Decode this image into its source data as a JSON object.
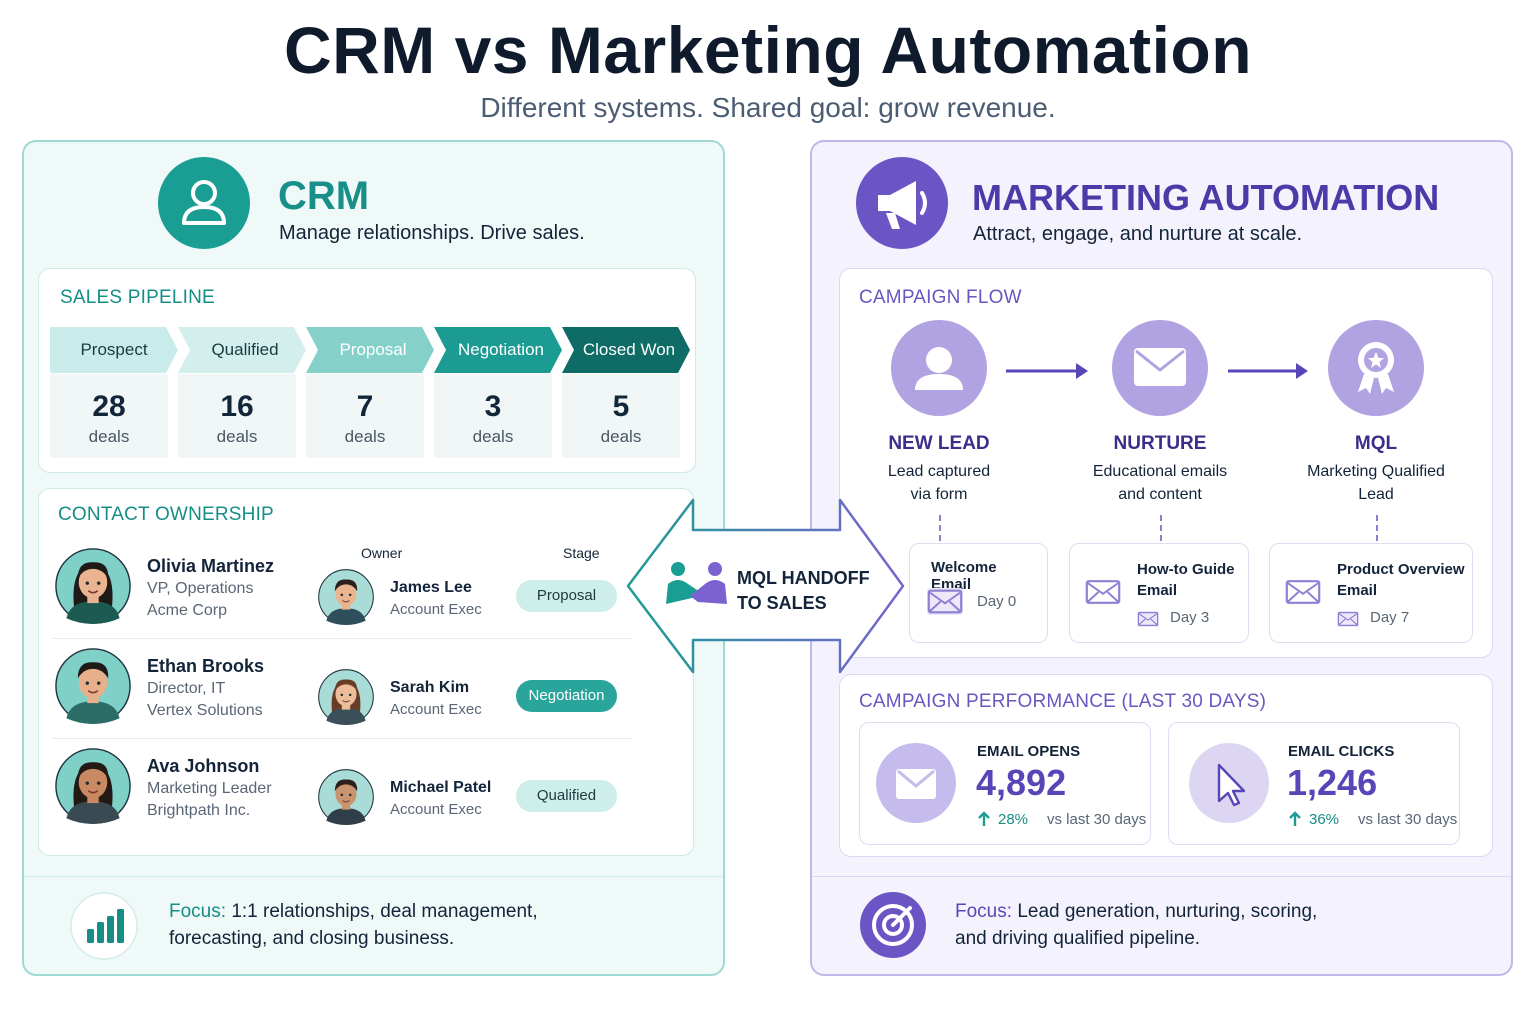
{
  "header": {
    "title": "CRM vs Marketing Automation",
    "subtitle": "Different systems. Shared goal: grow revenue."
  },
  "crm": {
    "title": "CRM",
    "tagline": "Manage relationships. Drive sales.",
    "pipeline": {
      "title": "SALES PIPELINE",
      "stages": [
        {
          "name": "Prospect",
          "count": 28,
          "unit": "deals"
        },
        {
          "name": "Qualified",
          "count": 16,
          "unit": "deals"
        },
        {
          "name": "Proposal",
          "count": 7,
          "unit": "deals"
        },
        {
          "name": "Negotiation",
          "count": 3,
          "unit": "deals"
        },
        {
          "name": "Closed Won",
          "count": 5,
          "unit": "deals"
        }
      ]
    },
    "contacts": {
      "title": "CONTACT OWNERSHIP",
      "owner_header": "Owner",
      "stage_header": "Stage",
      "rows": [
        {
          "name": "Olivia Martinez",
          "role": "VP, Operations",
          "company": "Acme Corp",
          "owner": "James Lee",
          "owner_role": "Account Exec",
          "stage": "Proposal"
        },
        {
          "name": "Ethan Brooks",
          "role": "Director, IT",
          "company": "Vertex Solutions",
          "owner": "Sarah Kim",
          "owner_role": "Account Exec",
          "stage": "Negotiation"
        },
        {
          "name": "Ava Johnson",
          "role": "Marketing Leader",
          "company": "Brightpath Inc.",
          "owner": "Michael Patel",
          "owner_role": "Account Exec",
          "stage": "Qualified"
        }
      ]
    },
    "focus": {
      "label": "Focus:",
      "text": "1:1 relationships, deal management, forecasting, and closing business."
    }
  },
  "handoff": {
    "lines": [
      "MQL HANDOFF",
      "TO SALES"
    ]
  },
  "marketing": {
    "title": "MARKETING AUTOMATION",
    "tagline": "Attract, engage, and nurture at scale.",
    "flow": {
      "title": "CAMPAIGN FLOW",
      "steps": [
        {
          "label": "NEW LEAD",
          "description": [
            "Lead captured",
            "via form"
          ],
          "email": "Welcome Email",
          "day": "Day 0"
        },
        {
          "label": "NURTURE",
          "description": [
            "Educational emails",
            "and content"
          ],
          "email": "How-to Guide Email",
          "day": "Day 3"
        },
        {
          "label": "MQL",
          "description": [
            "Marketing Qualified",
            "Lead"
          ],
          "email": "Product Overview Email",
          "day": "Day 7"
        }
      ]
    },
    "performance": {
      "title": "CAMPAIGN PERFORMANCE (LAST 30 DAYS)",
      "metrics": [
        {
          "label": "EMAIL OPENS",
          "value": "4,892",
          "change": "28%",
          "comparison": "vs last 30 days"
        },
        {
          "label": "EMAIL CLICKS",
          "value": "1,246",
          "change": "36%",
          "comparison": "vs last 30 days"
        }
      ]
    },
    "focus": {
      "label": "Focus:",
      "text": "Lead generation, nurturing, scoring, and driving qualified pipeline."
    }
  }
}
